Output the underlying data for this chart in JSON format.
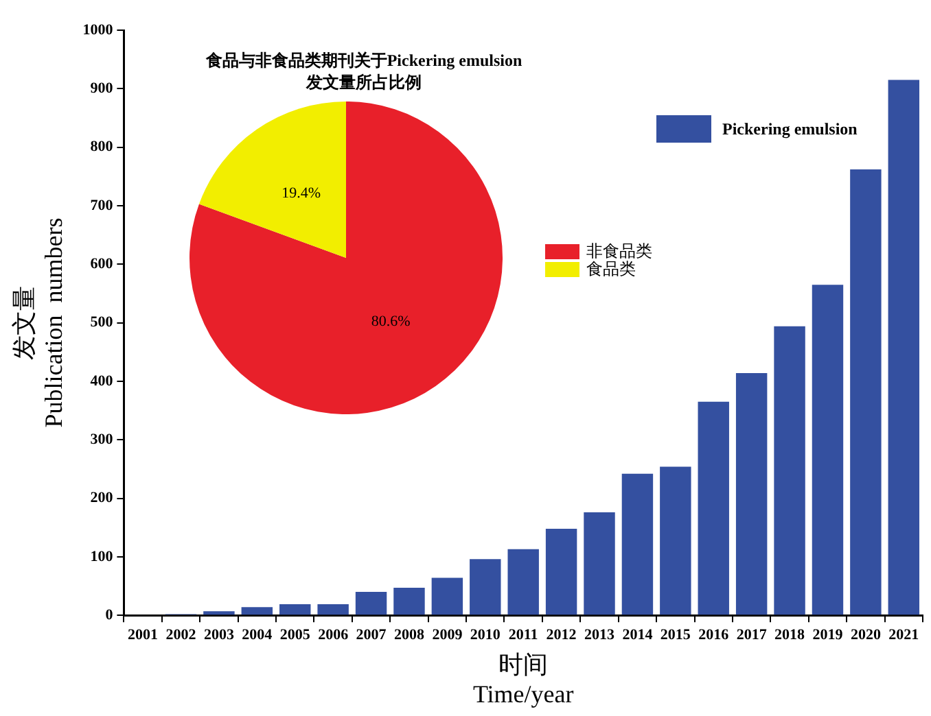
{
  "chart_data": [
    {
      "type": "bar",
      "xlabel": "时间\nTime/year",
      "ylabel": "发文量\nPublication  numbers",
      "categories": [
        "2001",
        "2002",
        "2003",
        "2004",
        "2005",
        "2006",
        "2007",
        "2008",
        "2009",
        "2010",
        "2011",
        "2012",
        "2013",
        "2014",
        "2015",
        "2016",
        "2017",
        "2018",
        "2019",
        "2020",
        "2021"
      ],
      "series": [
        {
          "name": "Pickering emulsion",
          "color": "#3450a0",
          "values": [
            null,
            2,
            7,
            14,
            19,
            19,
            40,
            47,
            64,
            96,
            113,
            148,
            176,
            242,
            254,
            365,
            414,
            494,
            565,
            762,
            915
          ]
        }
      ],
      "ylim": [
        0,
        1000
      ],
      "yticks": [
        0,
        100,
        200,
        300,
        400,
        500,
        600,
        700,
        800,
        900,
        1000
      ],
      "grid": false,
      "legend": "top right"
    },
    {
      "type": "pie",
      "title": "食品与非食品类期刊关于Pickering emulsion\n发文量所占比例",
      "categories": [
        "非食品类",
        "食品类"
      ],
      "values": [
        80.6,
        19.4
      ],
      "colors": [
        "#e8202a",
        "#f2ee00"
      ],
      "value_labels": [
        "80.6%",
        "19.4%"
      ],
      "legend": "right"
    }
  ]
}
